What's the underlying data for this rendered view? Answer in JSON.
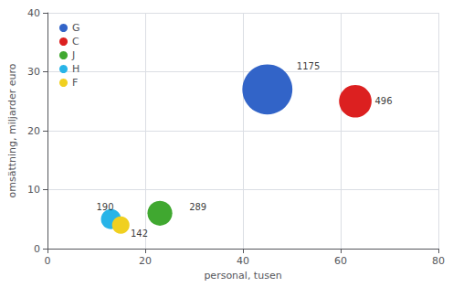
{
  "chart_data": {
    "type": "bubble",
    "xlabel": "personal, tusen",
    "ylabel": "omsättning, miljarder euro",
    "xlim": [
      0,
      80
    ],
    "ylim": [
      0,
      40
    ],
    "xticks": [
      0,
      20,
      40,
      60,
      80
    ],
    "yticks": [
      0,
      10,
      20,
      30,
      40
    ],
    "grid": true,
    "legend": "upper left",
    "series": [
      {
        "name": "G",
        "x": 45,
        "y": 27,
        "size": 1175,
        "color": "#3264c8"
      },
      {
        "name": "C",
        "x": 63,
        "y": 25,
        "size": 496,
        "color": "#dc2020"
      },
      {
        "name": "J",
        "x": 23,
        "y": 6,
        "size": 289,
        "color": "#40a830"
      },
      {
        "name": "H",
        "x": 13,
        "y": 5,
        "size": 190,
        "color": "#28b4e8"
      },
      {
        "name": "F",
        "x": 15,
        "y": 4,
        "size": 142,
        "color": "#f0d020"
      }
    ],
    "annotations": [
      {
        "text": "1175",
        "x": 51,
        "y": 31
      },
      {
        "text": "496",
        "x": 67,
        "y": 25
      },
      {
        "text": "289",
        "x": 29,
        "y": 7
      },
      {
        "text": "190",
        "x": 10,
        "y": 7
      },
      {
        "text": "142",
        "x": 17,
        "y": 2.5
      }
    ]
  }
}
